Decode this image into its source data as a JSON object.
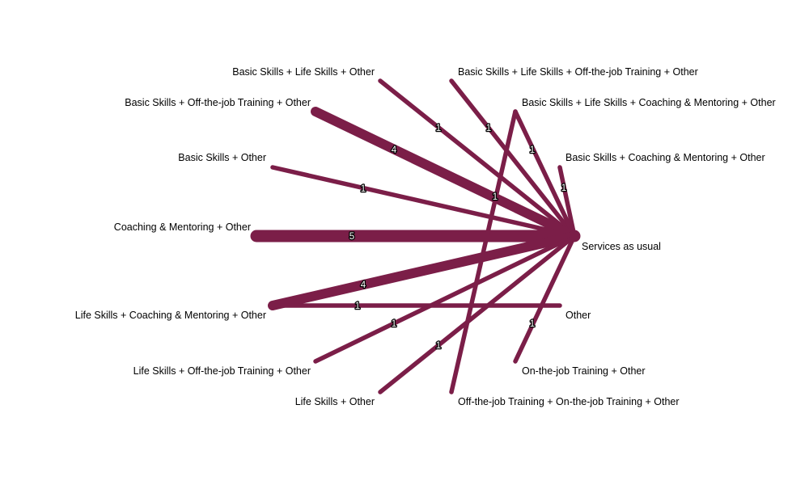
{
  "colors": {
    "edge": "#7b1e48",
    "label": "#000000",
    "edge_label_fill": "#ffffff",
    "edge_label_stroke": "#000000"
  },
  "hub": {
    "label": "Services as usual"
  },
  "nodes": [
    {
      "id": "n1",
      "label": "Basic Skills + Life Skills + Other"
    },
    {
      "id": "n2",
      "label": "Basic Skills + Life Skills + Off-the-job Training + Other"
    },
    {
      "id": "n3",
      "label": "Basic Skills + Off-the-job Training + Other"
    },
    {
      "id": "n4",
      "label": "Basic Skills + Life Skills + Coaching & Mentoring + Other"
    },
    {
      "id": "n5",
      "label": "Basic Skills + Other"
    },
    {
      "id": "n6",
      "label": "Basic Skills + Coaching & Mentoring + Other"
    },
    {
      "id": "n7",
      "label": "Coaching & Mentoring + Other"
    },
    {
      "id": "n8",
      "label": "Life Skills + Coaching & Mentoring + Other"
    },
    {
      "id": "n9",
      "label": "Other"
    },
    {
      "id": "n10",
      "label": "Life Skills + Off-the-job Training + Other"
    },
    {
      "id": "n11",
      "label": "On-the-job Training + Other"
    },
    {
      "id": "n12",
      "label": "Life Skills + Other"
    },
    {
      "id": "n13",
      "label": "Off-the-job Training + On-the-job Training + Other"
    }
  ],
  "edges": [
    {
      "from": "hub",
      "to": "n1",
      "label": "1",
      "weight": 1
    },
    {
      "from": "hub",
      "to": "n2",
      "label": "1",
      "weight": 1
    },
    {
      "from": "hub",
      "to": "n3",
      "label": "4",
      "weight": 4
    },
    {
      "from": "hub",
      "to": "n4",
      "label": "1",
      "weight": 1
    },
    {
      "from": "hub",
      "to": "n5",
      "label": "1",
      "weight": 1
    },
    {
      "from": "hub",
      "to": "n6",
      "label": "1",
      "weight": 1
    },
    {
      "from": "hub",
      "to": "n7",
      "label": "5",
      "weight": 5
    },
    {
      "from": "hub",
      "to": "n8",
      "label": "4",
      "weight": 4
    },
    {
      "from": "n9",
      "to": "n8",
      "label": "1",
      "weight": 1
    },
    {
      "from": "hub",
      "to": "n10",
      "label": "1",
      "weight": 1
    },
    {
      "from": "hub",
      "to": "n11",
      "label": "1",
      "weight": 1
    },
    {
      "from": "hub",
      "to": "n12",
      "label": "1",
      "weight": 1
    },
    {
      "from": "n4",
      "to": "n13",
      "label": "1",
      "weight": 1
    }
  ]
}
